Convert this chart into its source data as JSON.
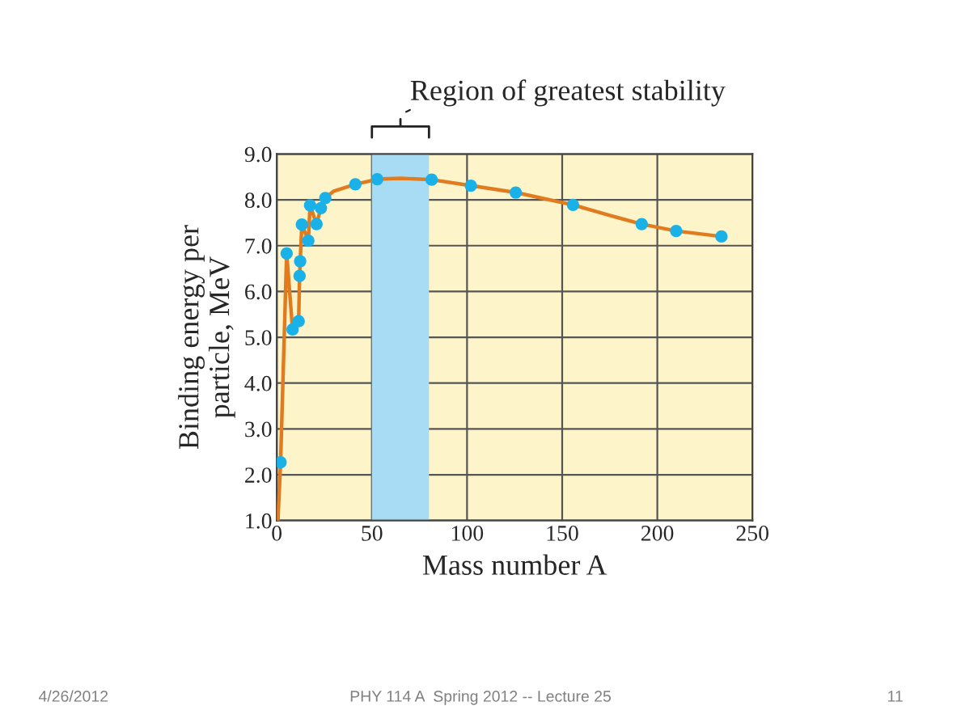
{
  "chart_data": {
    "type": "line",
    "xlabel": "Mass number A",
    "ylabel": "Binding energy per\nparticle, MeV",
    "xlim": [
      0,
      250
    ],
    "ylim": [
      1.0,
      9.0
    ],
    "xticks": [
      0,
      50,
      100,
      150,
      200,
      250
    ],
    "yticks": [
      {
        "value": 1,
        "label": "1.0"
      },
      {
        "value": 2,
        "label": "2.0"
      },
      {
        "value": 3,
        "label": "3.0"
      },
      {
        "value": 4,
        "label": "4.0"
      },
      {
        "value": 5,
        "label": "5.0"
      },
      {
        "value": 6,
        "label": "6.0"
      },
      {
        "value": 7,
        "label": "7.0"
      },
      {
        "value": 8,
        "label": "8.0"
      },
      {
        "value": 9,
        "label": "9.0"
      }
    ],
    "grid": true,
    "series": [
      {
        "color": "#e07b1f",
        "marker": "none",
        "line_style": "solid",
        "x": [
          0.6,
          2,
          5.2,
          8.3,
          11.5,
          12,
          12.3,
          13.2,
          16.6,
          17.5,
          20.9,
          23.2,
          25.5,
          30,
          41.3,
          52.8,
          65,
          81.4,
          102,
          125.6,
          155.7,
          175,
          191.8,
          209.9,
          233.7
        ],
        "values": [
          1.0,
          2.27,
          6.83,
          5.17,
          5.35,
          6.34,
          6.66,
          7.46,
          7.11,
          7.88,
          7.47,
          7.82,
          8.04,
          8.19,
          8.34,
          8.45,
          8.47,
          8.44,
          8.31,
          8.16,
          7.89,
          7.66,
          7.47,
          7.32,
          7.2
        ]
      },
      {
        "type": "scatter",
        "color": "#1ab0e8",
        "marker": "circle",
        "x": [
          2,
          5.2,
          8.3,
          11.5,
          12,
          12.3,
          13.2,
          16.6,
          17.5,
          20.9,
          23.2,
          25.5,
          41.3,
          52.8,
          81.4,
          102,
          125.6,
          155.7,
          191.8,
          209.9,
          233.7
        ],
        "values": [
          2.27,
          6.83,
          5.17,
          5.35,
          6.34,
          6.66,
          7.46,
          7.11,
          7.88,
          7.47,
          7.82,
          8.04,
          8.34,
          8.45,
          8.44,
          8.31,
          8.16,
          7.89,
          7.47,
          7.32,
          7.2
        ]
      }
    ],
    "bands": [
      {
        "axis": "x",
        "from": 50,
        "to": 80,
        "label": "Region of greatest stability",
        "color": "#a8dcf5"
      }
    ],
    "annotations": [
      "4/26/2012",
      "PHY 114 A  Spring 2012 -- Lecture 25",
      "11"
    ]
  }
}
